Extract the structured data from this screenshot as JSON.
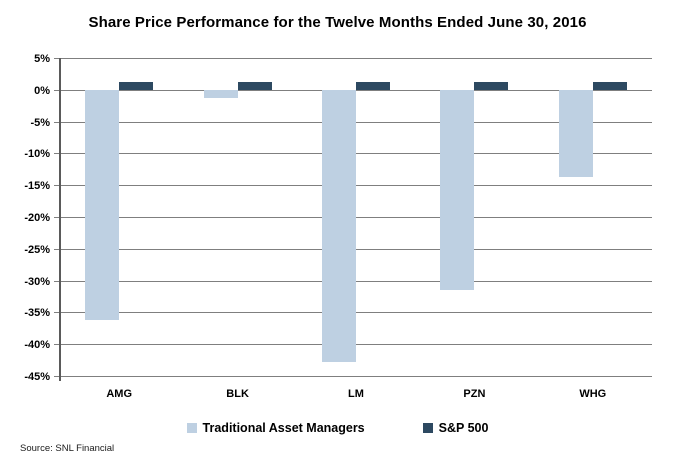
{
  "title": "Share Price Performance for the Twelve Months Ended June 30, 2016",
  "source": "Source: SNL Financial",
  "colors": {
    "traditional_asset_managers": "#bed0e2",
    "sp500": "#2d4961",
    "gridline": "#7f7f7f",
    "axis": "#5a5a5a",
    "text": "#000000"
  },
  "legend": [
    {
      "label": "Traditional Asset Managers",
      "color": "#bed0e2"
    },
    {
      "label": "S&P 500",
      "color": "#2d4961"
    }
  ],
  "chart_data": {
    "type": "bar",
    "title": "Share Price Performance for the Twelve Months Ended June 30, 2016",
    "categories": [
      "AMG",
      "BLK",
      "LM",
      "PZN",
      "WHG"
    ],
    "series": [
      {
        "name": "Traditional Asset Managers",
        "color": "#bed0e2",
        "values": [
          -36.2,
          -1.3,
          -42.8,
          -31.5,
          -13.7
        ]
      },
      {
        "name": "S&P 500",
        "color": "#2d4961",
        "values": [
          1.2,
          1.2,
          1.2,
          1.2,
          1.2
        ]
      }
    ],
    "xlabel": "",
    "ylabel": "",
    "ylim": [
      -45,
      5
    ],
    "ytick_step": 5,
    "ytick_labels": [
      "5%",
      "0%",
      "-5%",
      "-10%",
      "-15%",
      "-20%",
      "-25%",
      "-30%",
      "-35%",
      "-40%",
      "-45%"
    ],
    "value_unit": "percent",
    "grid": true,
    "legend_position": "bottom"
  }
}
